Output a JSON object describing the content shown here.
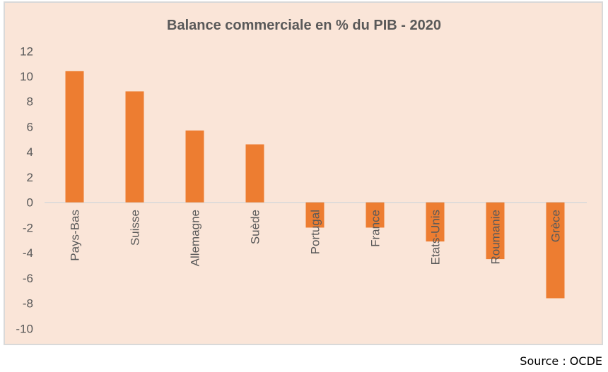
{
  "chart_data": {
    "type": "bar",
    "title": "Balance commerciale en % du PIB - 2020",
    "categories": [
      "Pays-Bas",
      "Suisse",
      "Allemagne",
      "Suède",
      "Portugal",
      "France",
      "Etats-Unis",
      "Roumanie",
      "Grèce"
    ],
    "values": [
      10.4,
      8.8,
      5.7,
      4.6,
      -2.0,
      -2.0,
      -3.1,
      -4.5,
      -7.6
    ],
    "ylim": [
      -10,
      12
    ],
    "yticks": [
      "12",
      "10",
      "8",
      "6",
      "4",
      "2",
      "0",
      "-2",
      "-4",
      "-6",
      "-8",
      "-10"
    ],
    "xlabel": "",
    "ylabel": "",
    "grid": false,
    "bar_color": "#ed7d31"
  },
  "source": "Source : OCDE"
}
